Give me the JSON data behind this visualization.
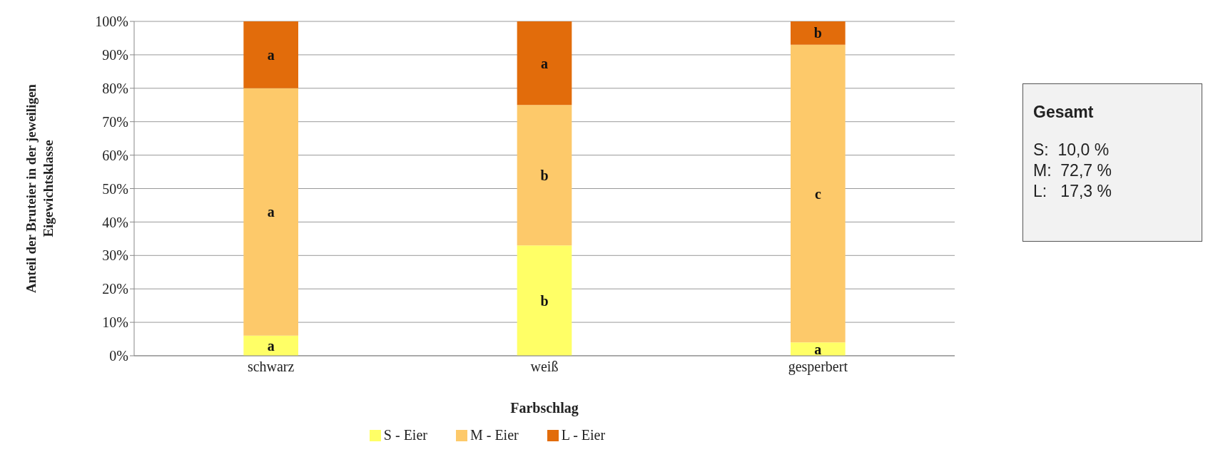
{
  "chart_data": {
    "type": "bar",
    "stacked": true,
    "xlabel": "Farbschlag",
    "ylabel": "Anteil der Bruteier in der jeweiligen Eigewichtsklasse",
    "categories": [
      "schwarz",
      "weiß",
      "gesperbert"
    ],
    "series": [
      {
        "name": "S - Eier",
        "color": "#ffff66",
        "values": [
          6,
          33,
          4
        ],
        "value_labels": [
          "a",
          "b",
          "a"
        ]
      },
      {
        "name": "M - Eier",
        "color": "#fdc96a",
        "values": [
          74,
          42,
          89
        ],
        "value_labels": [
          "a",
          "b",
          "c"
        ]
      },
      {
        "name": "L - Eier",
        "color": "#e26c0b",
        "values": [
          20,
          25,
          7
        ],
        "value_labels": [
          "a",
          "a",
          "b"
        ]
      }
    ],
    "ylim": [
      0,
      100
    ],
    "yticks": [
      {
        "value": 0,
        "label": "0%"
      },
      {
        "value": 10,
        "label": "10%"
      },
      {
        "value": 20,
        "label": "20%"
      },
      {
        "value": 30,
        "label": "30%"
      },
      {
        "value": 40,
        "label": "40%"
      },
      {
        "value": 50,
        "label": "50%"
      },
      {
        "value": 60,
        "label": "60%"
      },
      {
        "value": 70,
        "label": "70%"
      },
      {
        "value": 80,
        "label": "80%"
      },
      {
        "value": 90,
        "label": "90%"
      },
      {
        "value": 100,
        "label": "100%"
      }
    ],
    "grid": "y",
    "legend": "bottom",
    "annotations": [
      "Gesamt",
      "S:  10,0 %",
      "M:  72,7 %",
      "L:   17,3 %"
    ]
  }
}
